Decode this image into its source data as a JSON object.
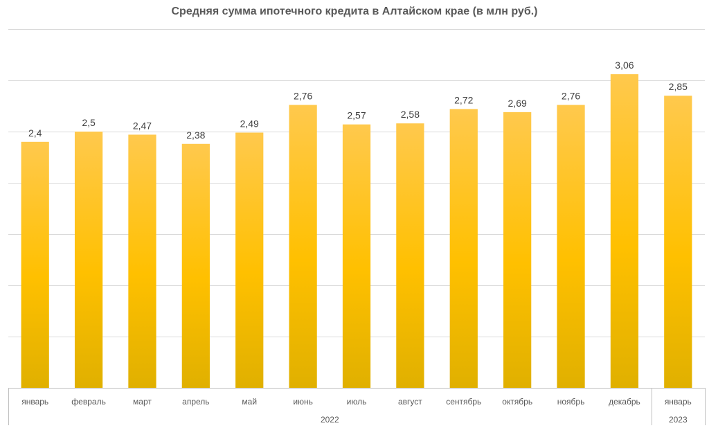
{
  "chart_data": {
    "type": "bar",
    "title": "Средняя сумма ипотечного кредита в Алтайском крае (в млн руб.)",
    "xlabel": "",
    "ylabel": "",
    "categories": [
      "январь",
      "февраль",
      "март",
      "апрель",
      "май",
      "июнь",
      "июль",
      "август",
      "сентябрь",
      "октябрь",
      "ноябрь",
      "декабрь",
      "январь"
    ],
    "category_groups": [
      {
        "label": "2022",
        "count": 12
      },
      {
        "label": "2023",
        "count": 1
      }
    ],
    "values": [
      2.4,
      2.5,
      2.47,
      2.38,
      2.49,
      2.76,
      2.57,
      2.58,
      2.72,
      2.69,
      2.76,
      3.06,
      2.85
    ],
    "value_labels": [
      "2,4",
      "2,5",
      "2,47",
      "2,38",
      "2,49",
      "2,76",
      "2,57",
      "2,58",
      "2,72",
      "2,69",
      "2,76",
      "3,06",
      "2,85"
    ],
    "ylim": [
      0,
      3.5
    ],
    "grid": true,
    "legend": "none",
    "bar_color_top": "#FFC94D",
    "bar_color_mid": "#FFC000",
    "bar_color_bottom": "#E0B000"
  }
}
